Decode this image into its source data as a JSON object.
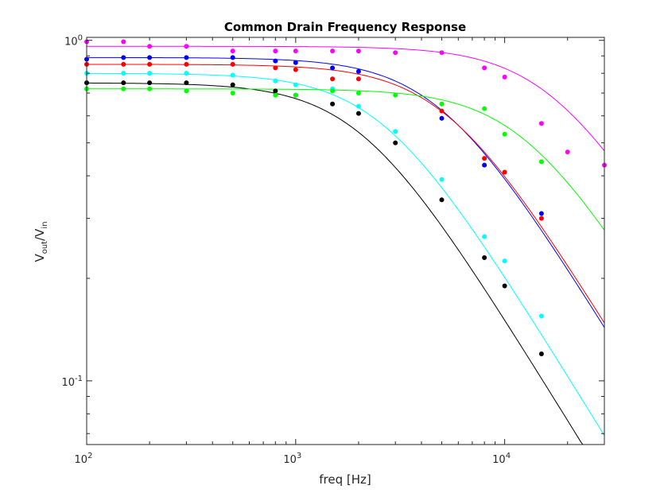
{
  "chart_data": {
    "type": "scatter",
    "title": "Common Drain Frequency Response",
    "xlabel": "freq [Hz]",
    "ylabel": {
      "main": "V",
      "sub1": "out",
      "slash": "/V",
      "sub2": "in"
    },
    "x_scale": "log",
    "y_scale": "log",
    "xlim": [
      100,
      30000
    ],
    "ylim": [
      0.065,
      1.02
    ],
    "x_ticks": [
      {
        "value": 100,
        "base": "10",
        "exp": "2"
      },
      {
        "value": 1000,
        "base": "10",
        "exp": "3"
      },
      {
        "value": 10000,
        "base": "10",
        "exp": "4"
      }
    ],
    "y_ticks": [
      {
        "value": 0.1,
        "base": "10",
        "exp": "-1"
      },
      {
        "value": 1,
        "base": "10",
        "exp": "0"
      }
    ],
    "grid": false,
    "series": [
      {
        "color": "#ff00ff",
        "points": [
          [
            100,
            0.99
          ],
          [
            150,
            0.99
          ],
          [
            200,
            0.96
          ],
          [
            300,
            0.96
          ],
          [
            500,
            0.93
          ],
          [
            800,
            0.93
          ],
          [
            1000,
            0.93
          ],
          [
            1500,
            0.93
          ],
          [
            2000,
            0.93
          ],
          [
            3000,
            0.92
          ],
          [
            5000,
            0.92
          ],
          [
            8000,
            0.83
          ],
          [
            10000,
            0.78
          ],
          [
            15000,
            0.57
          ],
          [
            20000,
            0.47
          ],
          [
            30000,
            0.43
          ]
        ],
        "fit": {
          "k": 0.96,
          "fc": 17000
        }
      },
      {
        "color": "#0000ff",
        "points": [
          [
            100,
            0.88
          ],
          [
            150,
            0.89
          ],
          [
            200,
            0.89
          ],
          [
            300,
            0.89
          ],
          [
            500,
            0.89
          ],
          [
            800,
            0.87
          ],
          [
            1000,
            0.86
          ],
          [
            1500,
            0.83
          ],
          [
            2000,
            0.81
          ],
          [
            5000,
            0.59
          ],
          [
            8000,
            0.43
          ],
          [
            15000,
            0.31
          ]
        ],
        "fit": {
          "k": 0.89,
          "fc": 4900
        }
      },
      {
        "color": "#ff0000",
        "points": [
          [
            100,
            0.85
          ],
          [
            150,
            0.85
          ],
          [
            200,
            0.85
          ],
          [
            300,
            0.85
          ],
          [
            500,
            0.85
          ],
          [
            800,
            0.83
          ],
          [
            1000,
            0.82
          ],
          [
            1500,
            0.77
          ],
          [
            2000,
            0.77
          ],
          [
            5000,
            0.62
          ],
          [
            8000,
            0.45
          ],
          [
            10000,
            0.41
          ],
          [
            15000,
            0.3
          ]
        ],
        "fit": {
          "k": 0.85,
          "fc": 5300
        }
      },
      {
        "color": "#00ffff",
        "points": [
          [
            100,
            0.8
          ],
          [
            150,
            0.8
          ],
          [
            200,
            0.8
          ],
          [
            300,
            0.8
          ],
          [
            500,
            0.79
          ],
          [
            800,
            0.76
          ],
          [
            1000,
            0.74
          ],
          [
            1500,
            0.72
          ],
          [
            2000,
            0.64
          ],
          [
            3000,
            0.54
          ],
          [
            5000,
            0.39
          ],
          [
            8000,
            0.265
          ],
          [
            10000,
            0.225
          ],
          [
            15000,
            0.155
          ]
        ],
        "fit": {
          "k": 0.8,
          "fc": 2600
        }
      },
      {
        "color": "#000000",
        "points": [
          [
            100,
            0.75
          ],
          [
            150,
            0.75
          ],
          [
            200,
            0.75
          ],
          [
            300,
            0.75
          ],
          [
            500,
            0.74
          ],
          [
            800,
            0.71
          ],
          [
            1000,
            0.69
          ],
          [
            1500,
            0.65
          ],
          [
            2000,
            0.61
          ],
          [
            3000,
            0.5
          ],
          [
            5000,
            0.34
          ],
          [
            8000,
            0.23
          ],
          [
            10000,
            0.19
          ],
          [
            15000,
            0.12
          ]
        ],
        "fit": {
          "k": 0.75,
          "fc": 2050
        }
      },
      {
        "color": "#00ff00",
        "points": [
          [
            100,
            0.72
          ],
          [
            150,
            0.72
          ],
          [
            200,
            0.72
          ],
          [
            300,
            0.71
          ],
          [
            500,
            0.7
          ],
          [
            800,
            0.69
          ],
          [
            1000,
            0.69
          ],
          [
            1500,
            0.71
          ],
          [
            2000,
            0.7
          ],
          [
            3000,
            0.69
          ],
          [
            5000,
            0.65
          ],
          [
            8000,
            0.63
          ],
          [
            10000,
            0.53
          ],
          [
            15000,
            0.44
          ]
        ],
        "fit": {
          "k": 0.72,
          "fc": 12500
        }
      }
    ]
  }
}
